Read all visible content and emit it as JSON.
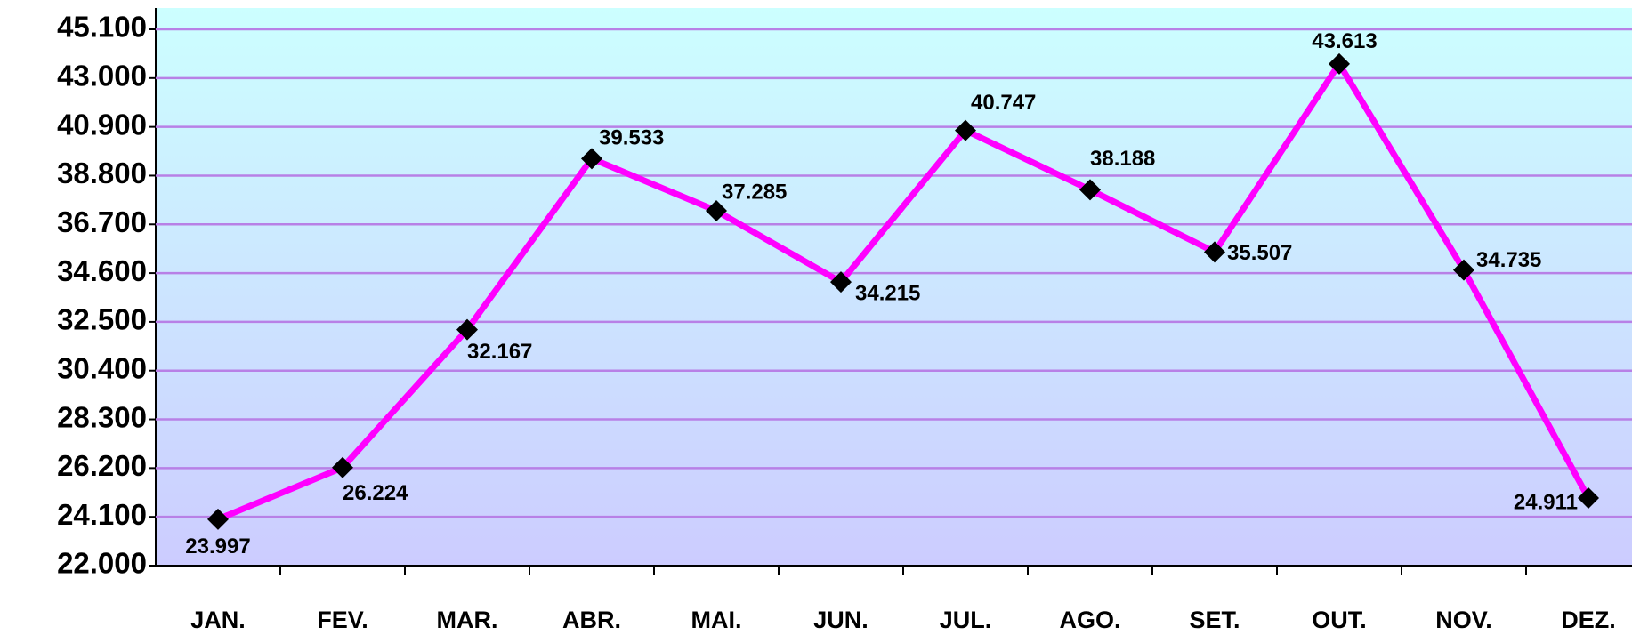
{
  "chart_data": {
    "type": "line",
    "categories": [
      "JAN.",
      "FEV.",
      "MAR.",
      "ABR.",
      "MAI.",
      "JUN.",
      "JUL.",
      "AGO.",
      "SET.",
      "OUT.",
      "NOV.",
      "DEZ."
    ],
    "series": [
      {
        "color": "#ff00ff",
        "marker_color": "#000000",
        "values": [
          23997,
          26224,
          32167,
          39533,
          37285,
          34215,
          40747,
          38188,
          35507,
          43613,
          34735,
          24911
        ],
        "value_labels": [
          "23.997",
          "26.224",
          "32.167",
          "39.533",
          "37.285",
          "34.215",
          "40.747",
          "38.188",
          "35.507",
          "43.613",
          "34.735",
          "24.911"
        ]
      }
    ],
    "ylim": [
      22000,
      45100
    ],
    "yticks": [
      {
        "value": 22000,
        "label": "22.000"
      },
      {
        "value": 24100,
        "label": "24.100"
      },
      {
        "value": 26200,
        "label": "26.200"
      },
      {
        "value": 28300,
        "label": "28.300"
      },
      {
        "value": 30400,
        "label": "30.400"
      },
      {
        "value": 32500,
        "label": "32.500"
      },
      {
        "value": 34600,
        "label": "34.600"
      },
      {
        "value": 36700,
        "label": "36.700"
      },
      {
        "value": 38800,
        "label": "38.800"
      },
      {
        "value": 40900,
        "label": "40.900"
      },
      {
        "value": 43000,
        "label": "43.000"
      },
      {
        "value": 45100,
        "label": "45.100"
      }
    ],
    "grid": true
  }
}
